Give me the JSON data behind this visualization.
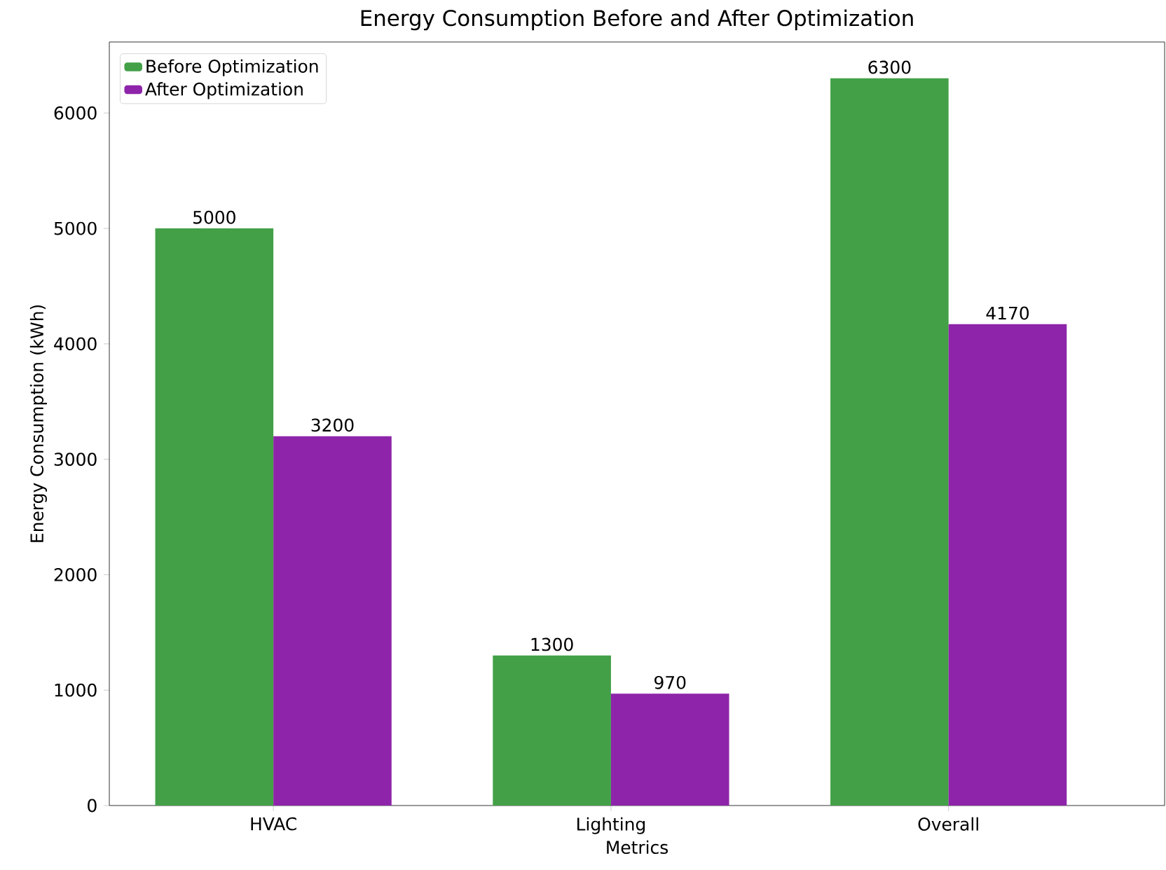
{
  "chart_data": {
    "type": "bar",
    "title": "Energy Consumption Before and After Optimization",
    "xlabel": "Metrics",
    "ylabel": "Energy Consumption (kWh)",
    "categories": [
      "HVAC",
      "Lighting",
      "Overall"
    ],
    "series": [
      {
        "name": "Before Optimization",
        "color": "#43a047",
        "values": [
          5000,
          1300,
          6300
        ]
      },
      {
        "name": "After Optimization",
        "color": "#8e24aa",
        "values": [
          3200,
          970,
          4170
        ]
      }
    ],
    "ylim": [
      0,
      6615
    ],
    "yticks": [
      0,
      1000,
      2000,
      3000,
      4000,
      5000,
      6000
    ],
    "data_labels": true,
    "legend": "top left",
    "grid": false
  }
}
